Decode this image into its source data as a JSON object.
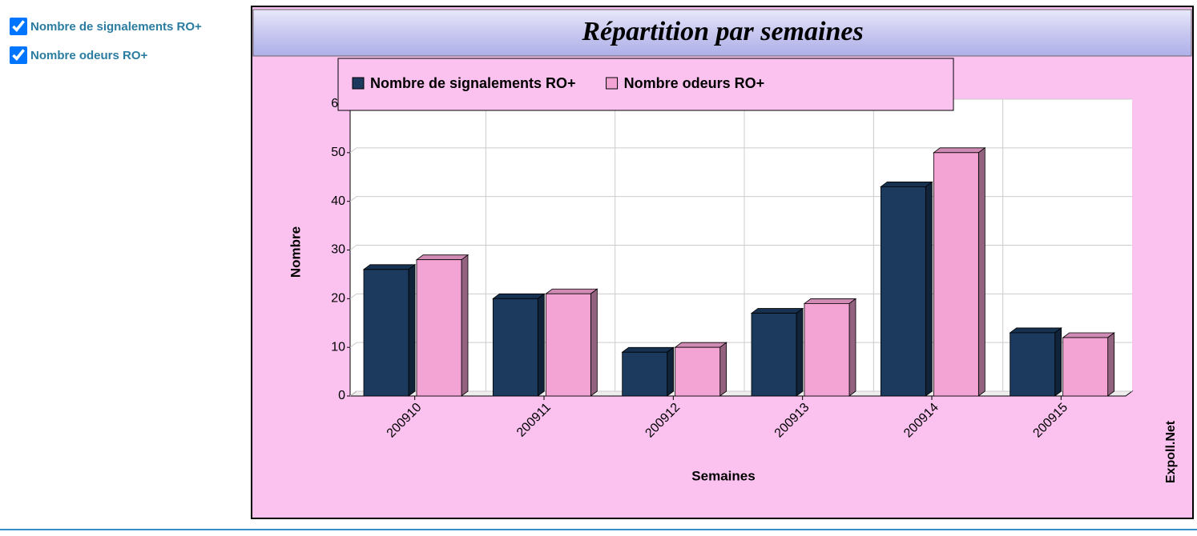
{
  "sidebar": {
    "items": [
      {
        "label": "Nombre de signalements RO+",
        "checked": true
      },
      {
        "label": "Nombre odeurs RO+",
        "checked": true
      }
    ]
  },
  "chart_data": {
    "type": "bar",
    "title": "Répartition par semaines",
    "categories": [
      "200910",
      "200911",
      "200912",
      "200913",
      "200914",
      "200915"
    ],
    "series": [
      {
        "name": "Nombre de signalements RO+",
        "color": "#1b3a5e",
        "values": [
          26,
          20,
          9,
          17,
          43,
          13
        ]
      },
      {
        "name": "Nombre odeurs RO+",
        "color": "#f4a4d4",
        "values": [
          28,
          21,
          10,
          19,
          50,
          12
        ]
      }
    ],
    "ylim": [
      0,
      60
    ],
    "yticks": [
      0,
      10,
      20,
      30,
      40,
      50,
      60
    ],
    "grid": true,
    "x_label": "Semaines",
    "y_label": "Nombre",
    "watermark": "Expoll.Net",
    "legend": "top"
  }
}
